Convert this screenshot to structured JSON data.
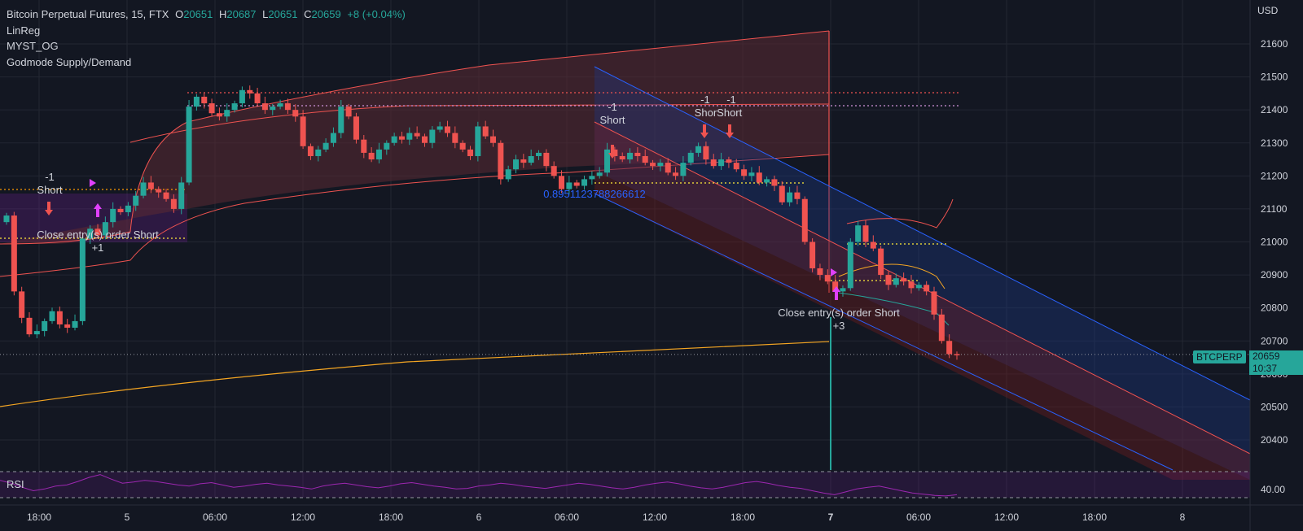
{
  "header": {
    "symbol": "Bitcoin Perpetual Futures, 15, FTX",
    "ohlc": {
      "o_label": "O",
      "o": "20651",
      "h_label": "H",
      "h": "20687",
      "l_label": "L",
      "l": "20651",
      "c_label": "C",
      "c": "20659"
    },
    "change": "+8 (+0.04%)",
    "indicators": [
      "LinReg",
      "MYST_OG",
      "Godmode Supply/Demand"
    ]
  },
  "price_axis": {
    "currency": "USD",
    "ticks": [
      "21600",
      "21500",
      "21400",
      "21300",
      "21200",
      "21100",
      "21000",
      "20900",
      "20800",
      "20700",
      "20600",
      "20500",
      "20400"
    ],
    "last_price_label": "BTCPERP",
    "last_price": "20659",
    "countdown": "10:37"
  },
  "time_axis": {
    "ticks": [
      "18:00",
      "5",
      "06:00",
      "12:00",
      "18:00",
      "6",
      "06:00",
      "12:00",
      "18:00",
      "7",
      "06:00",
      "12:00",
      "18:00",
      "8"
    ]
  },
  "rsi": {
    "label": "RSI",
    "level": "40.00"
  },
  "annotations": {
    "short1": "-1",
    "short1_label": "Short",
    "close1": "Close entry(s) order Short",
    "close1_qty": "+1",
    "short2": "-1",
    "short2_label": "Short",
    "short3": "-1",
    "short4": "-1",
    "short34_label": "ShorShort",
    "close2": "Close entry(s) order Short",
    "close2_qty": "+3",
    "linreg_value": "0.8951123788266612"
  },
  "colors": {
    "background": "#131722",
    "grid": "#232732",
    "up": "#26a69a",
    "down": "#ef5350",
    "supply_fill": "#5b2a33",
    "channel_blue": "#2962ff",
    "vwap": "#f5a623",
    "rsi": "#9c27b0"
  },
  "chart_data": {
    "type": "candlestick",
    "title": "Bitcoin Perpetual Futures, 15, FTX",
    "ylim": [
      20340,
      21680
    ],
    "last": 20659,
    "levels": [
      21445,
      21412,
      21155,
      21010,
      20988,
      20880,
      21180
    ],
    "closes": [
      21080,
      20850,
      20770,
      20720,
      20730,
      20760,
      20790,
      20750,
      20740,
      20760,
      21010,
      21040,
      21020,
      21060,
      21100,
      21090,
      21110,
      21140,
      21180,
      21160,
      21150,
      21130,
      21100,
      21180,
      21410,
      21440,
      21420,
      21390,
      21380,
      21400,
      21420,
      21460,
      21450,
      21420,
      21400,
      21410,
      21420,
      21400,
      21380,
      21290,
      21260,
      21280,
      21300,
      21330,
      21410,
      21380,
      21310,
      21270,
      21250,
      21280,
      21300,
      21320,
      21310,
      21330,
      21320,
      21300,
      21340,
      21350,
      21330,
      21300,
      21280,
      21260,
      21350,
      21320,
      21300,
      21190,
      21220,
      21250,
      21240,
      21260,
      21270,
      21230,
      21200,
      21160,
      21180,
      21170,
      21190,
      21200,
      21210,
      21280,
      21260,
      21250,
      21270,
      21260,
      21240,
      21230,
      21240,
      21210,
      21200,
      21240,
      21270,
      21290,
      21250,
      21230,
      21250,
      21240,
      21220,
      21200,
      21210,
      21180,
      21190,
      21170,
      21120,
      21150,
      21130,
      21000,
      20920,
      20900,
      20880,
      20850,
      20860,
      21000,
      21050,
      21000,
      20980,
      20900,
      20870,
      20890,
      20880,
      20860,
      20870,
      20850,
      20780,
      20700,
      20660,
      20659
    ],
    "rsi": [
      60,
      55,
      48,
      42,
      45,
      50,
      52,
      58,
      65,
      70,
      62,
      55,
      57,
      60,
      58,
      55,
      52,
      50,
      54,
      56,
      52,
      48,
      50,
      53,
      55,
      52,
      50,
      48,
      45,
      50,
      53,
      55,
      52,
      49,
      47,
      50,
      54,
      56,
      53,
      50,
      48,
      45,
      46,
      50,
      52,
      55,
      53,
      50,
      48,
      46,
      49,
      52,
      55,
      53,
      50,
      47,
      45,
      48,
      52,
      55,
      57,
      54,
      50,
      47,
      45,
      48,
      52,
      56,
      58,
      55,
      51,
      48,
      46,
      42,
      38,
      35,
      40,
      45,
      48,
      50,
      46,
      42,
      38,
      36,
      34,
      33,
      35
    ]
  }
}
